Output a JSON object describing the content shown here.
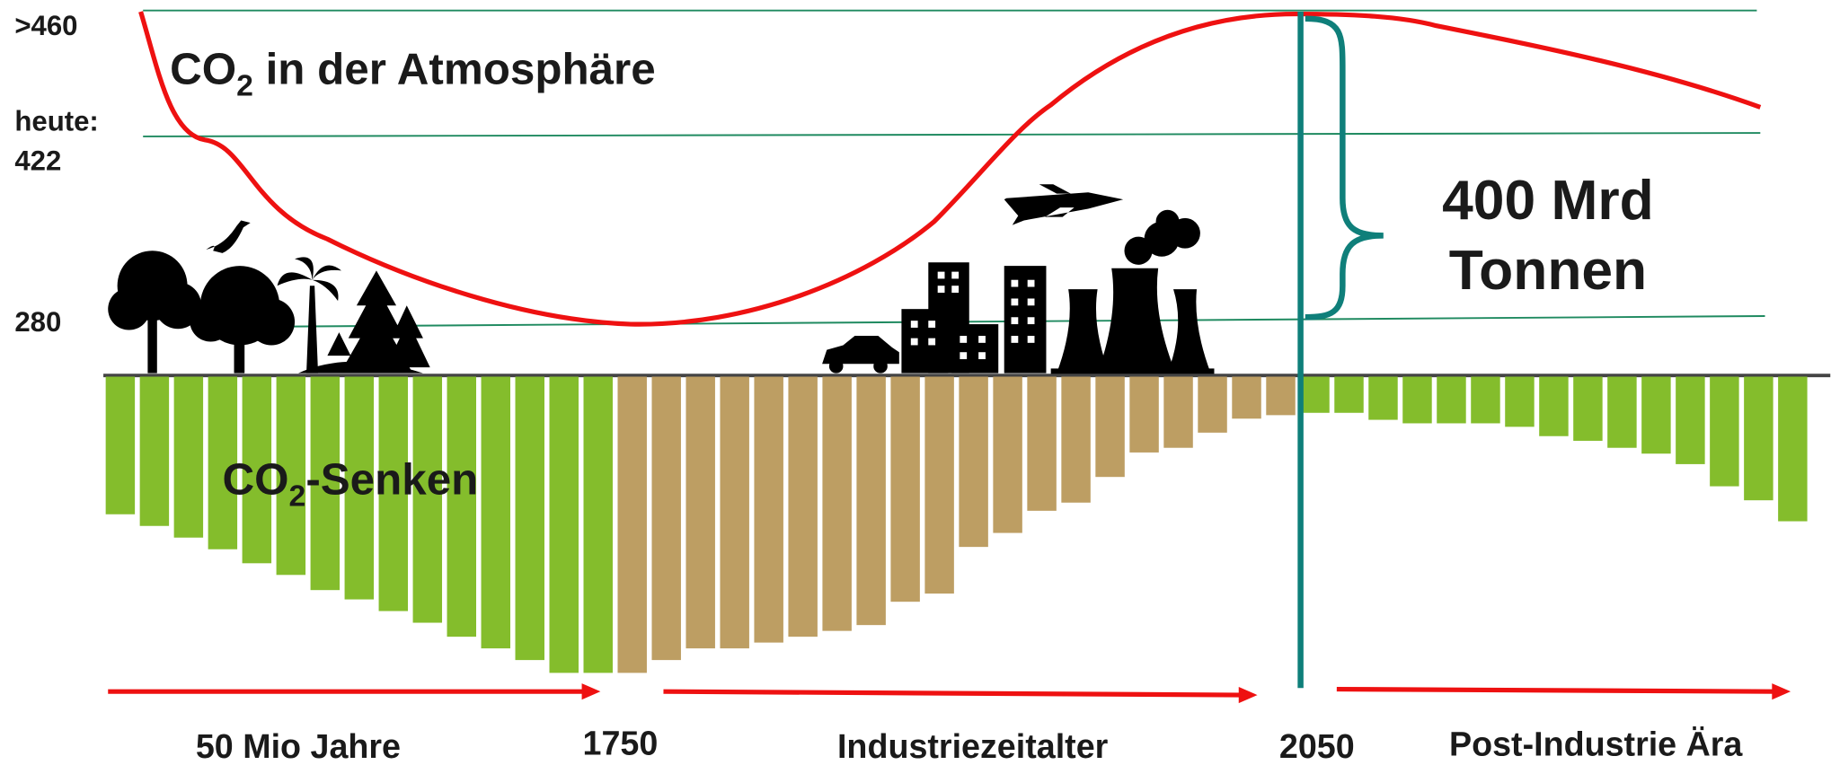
{
  "axis_labels": {
    "top": ">460",
    "today_label": "heute:",
    "today_value": "422",
    "pre": "280"
  },
  "atmosphere_title": {
    "main": "CO",
    "sub": "2",
    "rest": " in der Atmosphäre"
  },
  "sinks_title": {
    "main": "CO",
    "sub": "2",
    "rest": "-Senken"
  },
  "annotation": {
    "line1": "400 Mrd",
    "line2": "Tonnen"
  },
  "timeline": [
    "50 Mio Jahre",
    "1750",
    "Industriezeitalter",
    "2050",
    "Post-Industrie Ära"
  ],
  "sink_bars": [
    {
      "color": "#84bd2c",
      "values": [
        118,
        128,
        138,
        148,
        160,
        170,
        183,
        191,
        201,
        211,
        223,
        233,
        243,
        254,
        254
      ]
    },
    {
      "color": "#bd9e63",
      "values": [
        254,
        243,
        233,
        233,
        228,
        223,
        218,
        213,
        193,
        186,
        146,
        134,
        115,
        108,
        86,
        65,
        61,
        48,
        36,
        33
      ]
    },
    {
      "color": "#84bd2c",
      "values": [
        31,
        31,
        37,
        40,
        40,
        40,
        43,
        51,
        55,
        61,
        66,
        75,
        94,
        106,
        124
      ]
    }
  ]
}
